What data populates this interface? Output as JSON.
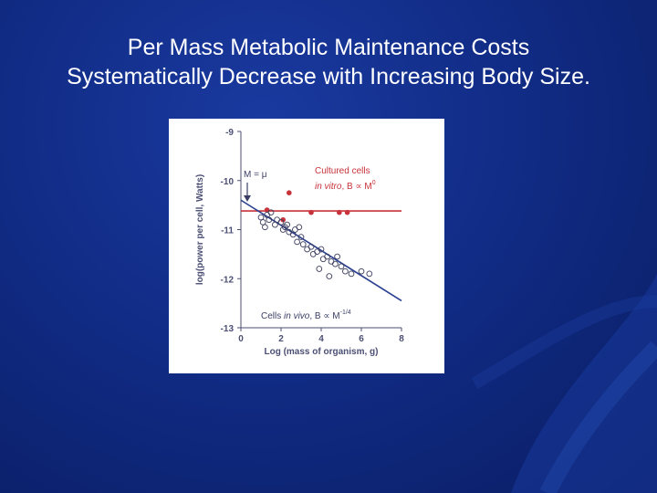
{
  "slide": {
    "title_line1": "Per Mass Metabolic Maintenance Costs",
    "title_line2": "Systematically Decrease with Increasing Body Size."
  },
  "colors": {
    "background": "#112c86",
    "in_vitro": "#c8323a",
    "in_vivo": "#2a3f8f",
    "axis": "#4b4f73"
  },
  "chart_data": {
    "type": "scatter",
    "title": "",
    "xlabel": "Log (mass of organism, g)",
    "ylabel": "log(power per cell, Watts)",
    "xlim": [
      0,
      8
    ],
    "ylim": [
      -13,
      -9
    ],
    "xticks": [
      "0",
      "2",
      "4",
      "6",
      "8"
    ],
    "yticks": [
      "-9",
      "-10",
      "-11",
      "-12",
      "-13"
    ],
    "series": [
      {
        "name": "Cultured cells in vitro",
        "marker": "filled-circle",
        "points": [
          [
            1.3,
            -10.6
          ],
          [
            2.4,
            -10.25
          ],
          [
            2.1,
            -10.8
          ],
          [
            3.5,
            -10.65
          ],
          [
            4.9,
            -10.65
          ],
          [
            5.3,
            -10.65
          ]
        ],
        "fit": {
          "x": [
            0,
            8
          ],
          "y": [
            -10.62,
            -10.62
          ]
        }
      },
      {
        "name": "Cells in vivo",
        "marker": "open-circle",
        "points": [
          [
            1.0,
            -10.75
          ],
          [
            1.1,
            -10.85
          ],
          [
            1.3,
            -10.7
          ],
          [
            1.5,
            -10.65
          ],
          [
            1.4,
            -10.8
          ],
          [
            1.7,
            -10.9
          ],
          [
            1.8,
            -10.8
          ],
          [
            2.0,
            -10.85
          ],
          [
            2.1,
            -11.0
          ],
          [
            2.2,
            -10.95
          ],
          [
            2.4,
            -11.05
          ],
          [
            2.3,
            -10.9
          ],
          [
            2.6,
            -11.1
          ],
          [
            2.7,
            -11.0
          ],
          [
            2.8,
            -11.25
          ],
          [
            3.0,
            -11.15
          ],
          [
            3.1,
            -11.3
          ],
          [
            3.3,
            -11.4
          ],
          [
            3.5,
            -11.35
          ],
          [
            3.6,
            -11.5
          ],
          [
            3.8,
            -11.45
          ],
          [
            4.0,
            -11.4
          ],
          [
            4.1,
            -11.6
          ],
          [
            4.3,
            -11.55
          ],
          [
            4.5,
            -11.65
          ],
          [
            4.7,
            -11.7
          ],
          [
            4.8,
            -11.55
          ],
          [
            5.0,
            -11.75
          ],
          [
            5.2,
            -11.85
          ],
          [
            5.5,
            -11.9
          ],
          [
            6.0,
            -11.85
          ],
          [
            6.4,
            -11.9
          ],
          [
            3.9,
            -11.8
          ],
          [
            2.9,
            -10.95
          ],
          [
            1.2,
            -10.95
          ],
          [
            4.4,
            -11.95
          ]
        ],
        "fit": {
          "x": [
            0,
            8
          ],
          "y": [
            -10.4,
            -12.45
          ]
        }
      }
    ],
    "annotations": [
      {
        "text": "M = μ",
        "x": 0.1,
        "y": -9.9
      },
      {
        "text": "Cultured cells",
        "x": 4.3,
        "y": -9.8
      },
      {
        "text": "in vitro, B ∝ M⁰",
        "x": 4.3,
        "y": -10.1
      },
      {
        "text": "Cells in vivo, B ∝ M⁻¹ᐟ⁴",
        "x": 1.0,
        "y": -12.85
      }
    ]
  }
}
